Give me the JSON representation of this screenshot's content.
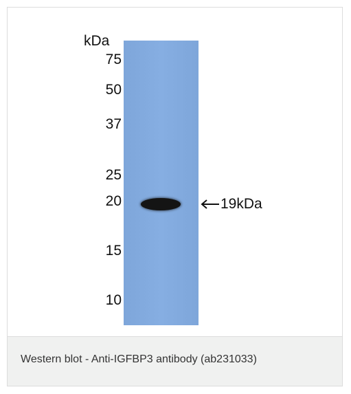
{
  "blot": {
    "unit_header": "kDa",
    "markers": [
      "75",
      "50",
      "37",
      "25",
      "20",
      "15",
      "10"
    ],
    "band_label": "19kDa",
    "lane_color": "#82aade",
    "band_color": "#141414"
  },
  "caption": {
    "text": "Western blot - Anti-IGFBP3 antibody (ab231033)"
  }
}
